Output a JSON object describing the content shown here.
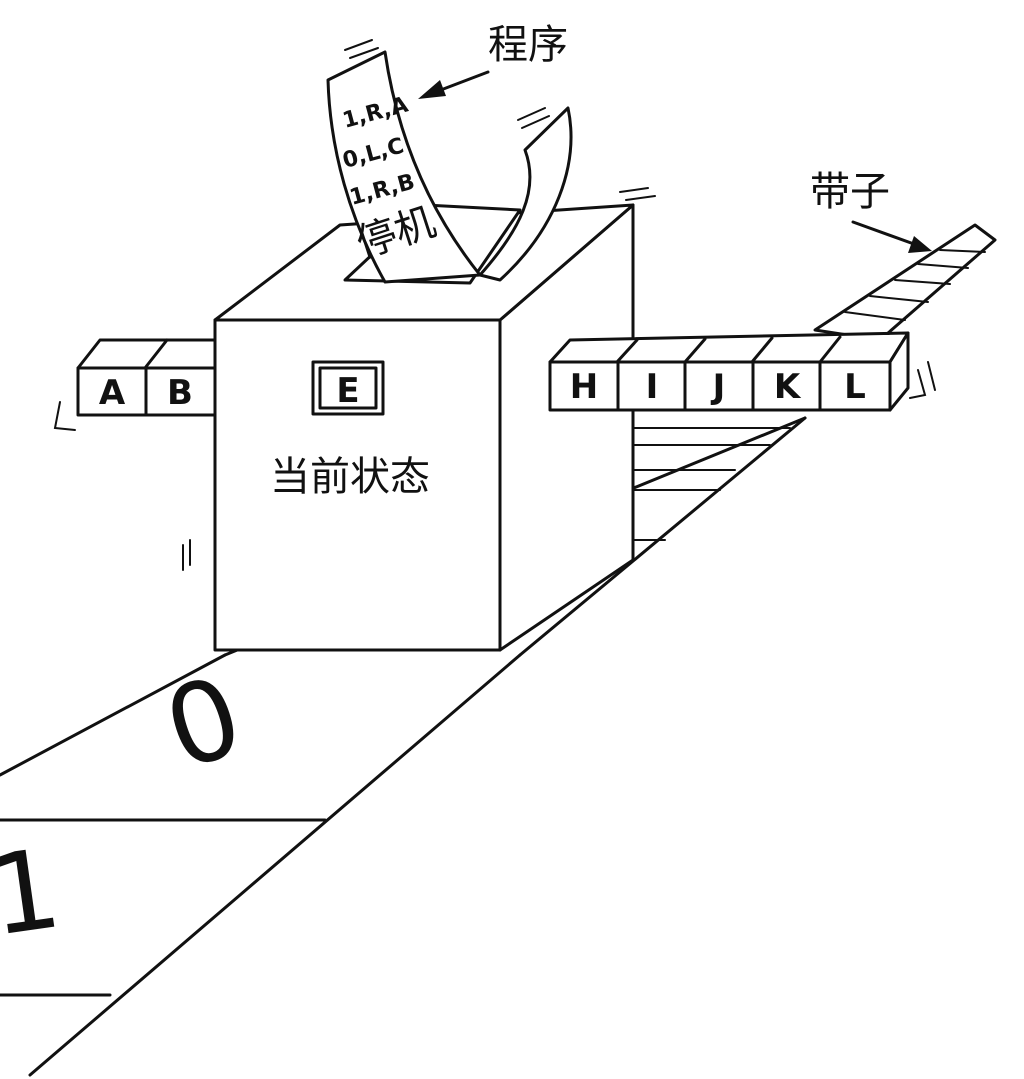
{
  "labels": {
    "program": "程序",
    "tape": "带子",
    "current_state": "当前状态",
    "halt": "停机"
  },
  "program_lines": [
    "1,R,A",
    "0,L,C",
    "1,R,B"
  ],
  "head_symbol": "E",
  "tape_left": [
    "A",
    "B"
  ],
  "tape_right": [
    "H",
    "I",
    "J",
    "K",
    "L"
  ],
  "floor_tape": [
    "0",
    "1"
  ]
}
